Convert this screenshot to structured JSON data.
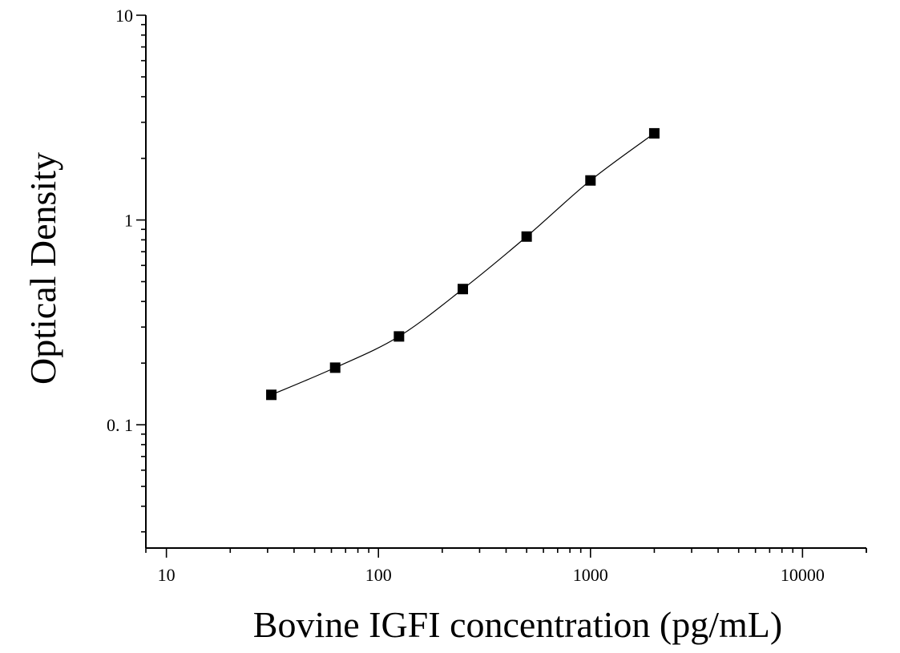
{
  "chart_data": {
    "type": "scatter",
    "title": "",
    "xlabel": "Bovine IGFI concentration (pg/mL)",
    "ylabel": "Optical Density",
    "xscale": "log",
    "yscale": "log",
    "xlim": [
      8,
      20000
    ],
    "ylim": [
      0.025,
      10
    ],
    "x_ticks": [
      {
        "value": 10,
        "label": "10"
      },
      {
        "value": 100,
        "label": "100"
      },
      {
        "value": 1000,
        "label": "1000"
      },
      {
        "value": 10000,
        "label": "10000"
      }
    ],
    "y_ticks": [
      {
        "value": 0.1,
        "label": "0. 1"
      },
      {
        "value": 1,
        "label": "1"
      },
      {
        "value": 10,
        "label": "10"
      }
    ],
    "grid": false,
    "series": [
      {
        "x": [
          31.25,
          62.5,
          125,
          250,
          500,
          1000,
          2000
        ],
        "y": [
          0.14,
          0.19,
          0.27,
          0.46,
          0.83,
          1.56,
          2.65
        ],
        "marker": "square",
        "fit_line": true,
        "color": "#000000"
      }
    ]
  }
}
